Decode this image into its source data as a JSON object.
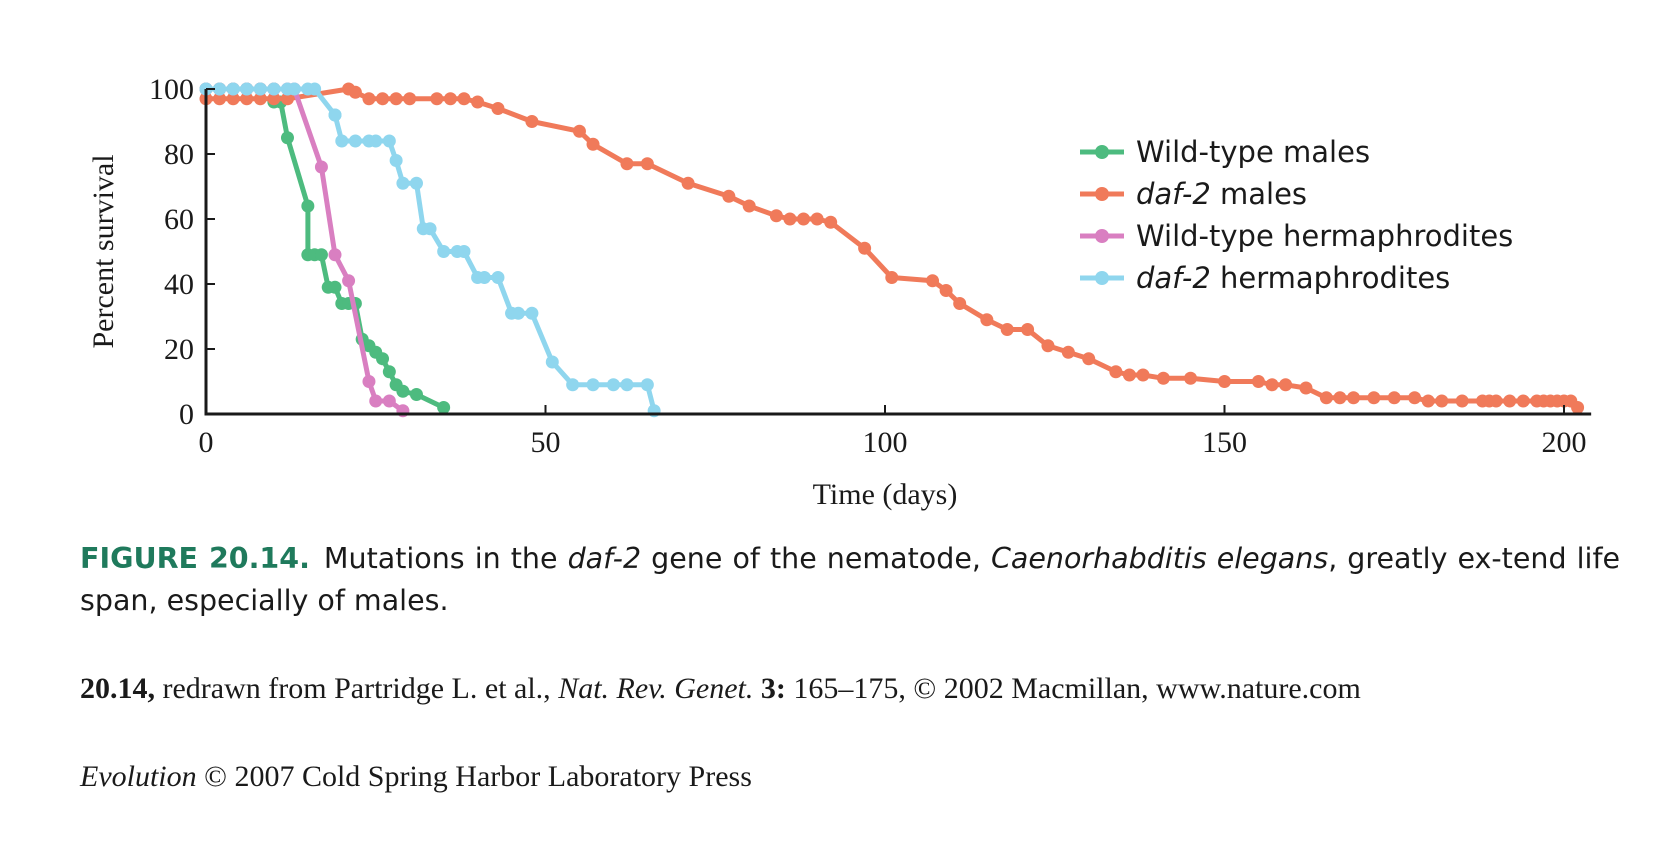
{
  "chart_data": {
    "type": "line",
    "xlabel": "Time (days)",
    "ylabel": "Percent survival",
    "xlim": [
      0,
      204
    ],
    "ylim": [
      0,
      100
    ],
    "xticks": [
      0,
      50,
      100,
      150,
      200
    ],
    "yticks": [
      0,
      20,
      40,
      60,
      80,
      100
    ],
    "legend_position": "top-right",
    "series": [
      {
        "name": "Wild-type males",
        "color": "#4dbb7f",
        "x": [
          0,
          2,
          4,
          6,
          8,
          10,
          10,
          11,
          12,
          15,
          15,
          16,
          17,
          18,
          19,
          20,
          21,
          22,
          23,
          24,
          25,
          26,
          27,
          28,
          29,
          31,
          35
        ],
        "y": [
          100,
          100,
          100,
          100,
          100,
          100,
          96,
          96,
          85,
          64,
          49,
          49,
          49,
          39,
          39,
          34,
          34,
          34,
          23,
          21,
          19,
          17,
          13,
          9,
          7,
          6,
          2
        ]
      },
      {
        "name": "daf-2 males",
        "color": "#f07a5a",
        "x": [
          0,
          2,
          4,
          6,
          8,
          10,
          12,
          21,
          22,
          24,
          26,
          28,
          30,
          34,
          36,
          38,
          40,
          43,
          48,
          55,
          57,
          62,
          65,
          71,
          77,
          80,
          84,
          86,
          88,
          90,
          92,
          97,
          101,
          107,
          109,
          111,
          115,
          118,
          121,
          124,
          127,
          130,
          134,
          136,
          138,
          141,
          145,
          150,
          155,
          157,
          159,
          162,
          165,
          167,
          169,
          172,
          175,
          178,
          180,
          182,
          185,
          188,
          189,
          190,
          192,
          194,
          196,
          197,
          198,
          199,
          200,
          201,
          202
        ],
        "y": [
          97,
          97,
          97,
          97,
          97,
          97,
          97,
          100,
          99,
          97,
          97,
          97,
          97,
          97,
          97,
          97,
          96,
          94,
          90,
          87,
          83,
          77,
          77,
          71,
          67,
          64,
          61,
          60,
          60,
          60,
          59,
          51,
          42,
          41,
          38,
          34,
          29,
          26,
          26,
          21,
          19,
          17,
          13,
          12,
          12,
          11,
          11,
          10,
          10,
          9,
          9,
          8,
          5,
          5,
          5,
          5,
          5,
          5,
          4,
          4,
          4,
          4,
          4,
          4,
          4,
          4,
          4,
          4,
          4,
          4,
          4,
          4,
          2
        ]
      },
      {
        "name": "Wild-type hermaphrodites",
        "color": "#d97fc1",
        "x": [
          0,
          2,
          4,
          6,
          8,
          10,
          12,
          13,
          17,
          19,
          21,
          24,
          25,
          27,
          29
        ],
        "y": [
          100,
          100,
          100,
          100,
          100,
          100,
          100,
          100,
          76,
          49,
          41,
          10,
          4,
          4,
          1
        ]
      },
      {
        "name": "daf-2 hermaphrodites",
        "color": "#8fd6ee",
        "x": [
          0,
          2,
          4,
          6,
          8,
          10,
          12,
          13,
          15,
          16,
          19,
          19,
          20,
          22,
          24,
          25,
          27,
          28,
          29,
          31,
          32,
          33,
          35,
          37,
          38,
          40,
          41,
          43,
          45,
          46,
          48,
          51,
          54,
          57,
          60,
          62,
          65,
          66
        ],
        "y": [
          100,
          100,
          100,
          100,
          100,
          100,
          100,
          100,
          100,
          100,
          92,
          92,
          84,
          84,
          84,
          84,
          84,
          78,
          71,
          71,
          57,
          57,
          50,
          50,
          50,
          42,
          42,
          42,
          31,
          31,
          31,
          16,
          9,
          9,
          9,
          9,
          9,
          1
        ]
      }
    ]
  },
  "caption": {
    "label": "FIGURE 20.14.",
    "text_1": "Mutations in the ",
    "italic_1": "daf-2",
    "text_2": " gene of the nematode, ",
    "italic_2": "Caenorhabditis elegans",
    "text_3": ", greatly ex-tend life span, especially of males."
  },
  "credit": {
    "bold_label": "20.14,",
    "text_1": " redrawn from Partridge L. et al., ",
    "italic_journal": "Nat. Rev. Genet.",
    "bold_volume": " 3:",
    "text_2": " 165–175, © 2002 Macmillan, www.nature.com"
  },
  "publisher": {
    "italic_title": "Evolution",
    "text": " © 2007 Cold Spring Harbor Laboratory Press"
  }
}
